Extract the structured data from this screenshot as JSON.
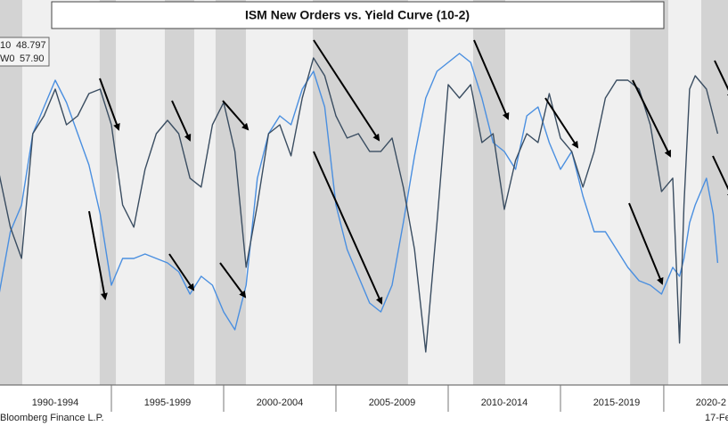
{
  "chart_data": {
    "type": "line",
    "title": "ISM New Orders vs. Yield Curve (10-2)",
    "source": "Bloomberg Finance L.P.",
    "date": "17-Fe",
    "xlim": [
      1990.04,
      2022.46
    ],
    "xticks": [
      {
        "value": 1992.5,
        "label": "1990-1994"
      },
      {
        "value": 1997.5,
        "label": "1995-1999"
      },
      {
        "value": 2002.5,
        "label": "2000-2004"
      },
      {
        "value": 2007.5,
        "label": "2005-2009"
      },
      {
        "value": 2012.5,
        "label": "2010-2014"
      },
      {
        "value": 2017.5,
        "label": "2015-2019"
      },
      {
        "value": 2021.7,
        "label": "2020-2"
      }
    ],
    "ylim": [
      18.4,
      78.9
    ],
    "y2lim": [
      -74.5,
      314.3
    ],
    "shaded_ranges": [
      [
        1990.04,
        1991.03
      ],
      [
        1994.48,
        1995.2
      ],
      [
        1997.38,
        1998.69
      ],
      [
        1999.64,
        2000.99
      ],
      [
        2003.97,
        2008.21
      ],
      [
        2011.11,
        2012.54
      ],
      [
        2018.1,
        2019.8
      ],
      [
        2021.27,
        2022.46
      ]
    ],
    "x": [
      1990.0,
      1990.5,
      1991.0,
      1991.5,
      1992.0,
      1992.5,
      1993.0,
      1993.5,
      1994.0,
      1994.5,
      1995.0,
      1995.5,
      1996.0,
      1996.5,
      1997.0,
      1997.5,
      1998.0,
      1998.5,
      1999.0,
      1999.5,
      2000.0,
      2000.5,
      2001.0,
      2001.5,
      2002.0,
      2002.5,
      2003.0,
      2003.5,
      2004.0,
      2004.5,
      2005.0,
      2005.5,
      2006.0,
      2006.5,
      2007.0,
      2007.5,
      2008.0,
      2008.5,
      2009.0,
      2009.5,
      2010.0,
      2010.5,
      2011.0,
      2011.5,
      2012.0,
      2012.5,
      2013.0,
      2013.5,
      2014.0,
      2014.5,
      2015.0,
      2015.5,
      2016.0,
      2016.5,
      2017.0,
      2017.5,
      2018.0,
      2018.5,
      2019.0,
      2019.5,
      2020.0,
      2020.3,
      2020.5,
      2020.75,
      2021.0,
      2021.5,
      2021.8,
      2022.0
    ],
    "series": [
      {
        "name": "10",
        "legend_value": 48.797,
        "color": "#4a8fe0",
        "axis": "y2",
        "values": [
          17.3,
          80.3,
          107.3,
          179.3,
          206.3,
          233.3,
          210.8,
          179.3,
          147.8,
          98.3,
          26.3,
          53.3,
          53.3,
          57.8,
          53.3,
          48.8,
          39.8,
          17.3,
          35.3,
          26.3,
          -0.7,
          -18.7,
          26.3,
          134.3,
          179.3,
          197.3,
          188.3,
          224.3,
          242.3,
          206.3,
          107.3,
          62.3,
          35.3,
          8.3,
          -0.7,
          26.3,
          89.3,
          156.8,
          215.3,
          242.3,
          251.3,
          260.3,
          251.3,
          215.3,
          170.3,
          161.3,
          143.3,
          197.3,
          206.3,
          170.3,
          143.3,
          161.3,
          116.3,
          80.3,
          80.3,
          62.3,
          44.3,
          30.8,
          26.3,
          17.3,
          44.3,
          35.3,
          53.3,
          89.3,
          107.3,
          134.3,
          98.3,
          48.8
        ]
      },
      {
        "name": "W0",
        "legend_value": {
          "value": 57.9,
          "label": "57.90"
        },
        "color": "#3a4d61",
        "values": [
          51.6,
          43.2,
          38.3,
          57.9,
          60.7,
          64.9,
          59.3,
          60.7,
          64.2,
          64.9,
          59.3,
          46.7,
          43.2,
          52.3,
          57.9,
          60.0,
          57.9,
          50.9,
          49.5,
          59.3,
          62.8,
          55.1,
          36.9,
          46.7,
          57.9,
          59.3,
          54.4,
          63.5,
          69.8,
          67.0,
          60.7,
          57.2,
          57.9,
          55.1,
          55.1,
          57.2,
          49.5,
          39.7,
          23.6,
          43.9,
          65.6,
          63.5,
          65.6,
          56.5,
          57.9,
          46.0,
          53.7,
          57.9,
          56.5,
          64.2,
          57.2,
          55.1,
          49.5,
          55.1,
          63.5,
          66.3,
          66.3,
          64.9,
          59.3,
          48.8,
          50.9,
          25.0,
          46.7,
          64.9,
          67.0,
          64.9,
          60.7,
          57.9
        ]
      }
    ]
  }
}
